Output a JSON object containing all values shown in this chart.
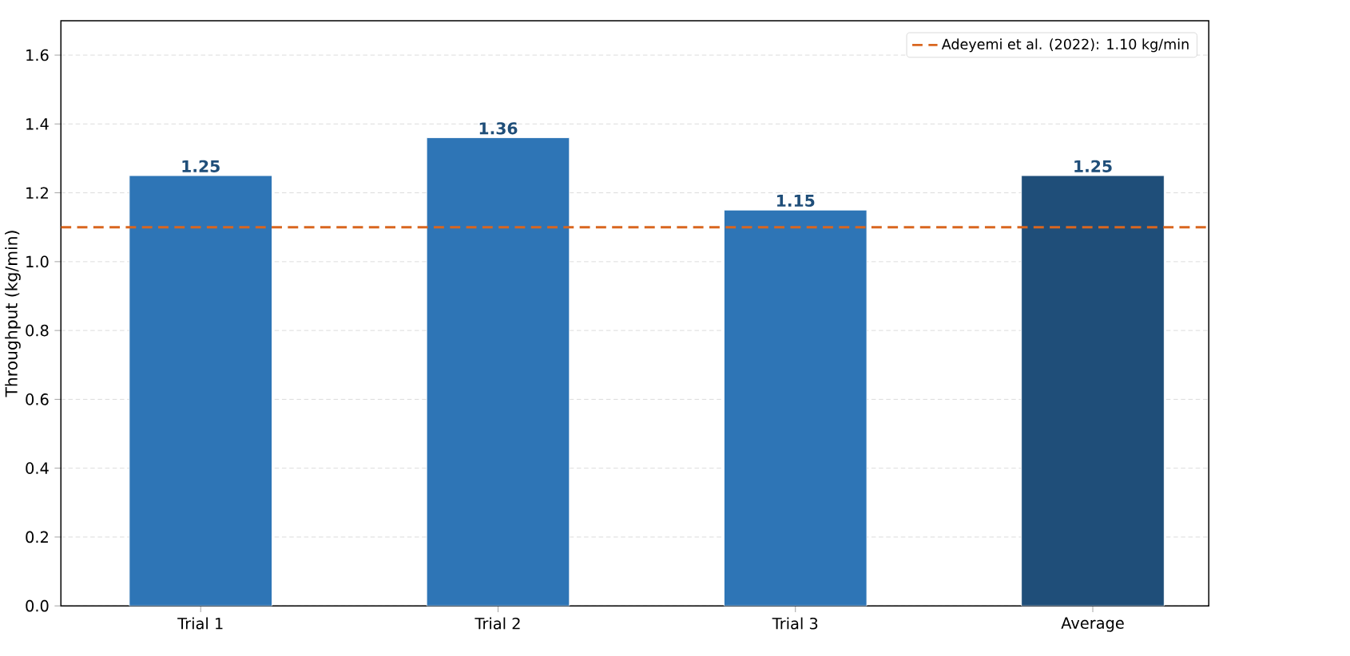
{
  "chart_data": {
    "type": "bar",
    "ylabel": "Throughput (kg/min)",
    "categories": [
      "Trial 1",
      "Trial 2",
      "Trial 3",
      "Average"
    ],
    "values": [
      1.25,
      1.36,
      1.15,
      1.25
    ],
    "colors": [
      "#2e75b6",
      "#2e75b6",
      "#2e75b6",
      "#1f4e79"
    ],
    "data_labels": true,
    "ylim": [
      0,
      1.7
    ],
    "yticks": [
      {
        "value": 0,
        "label": "0.0"
      },
      0.2,
      0.4,
      0.6,
      0.8,
      {
        "value": 1,
        "label": "1.0"
      },
      1.2,
      1.4,
      1.6
    ],
    "ref_lines": [
      {
        "axis": "y",
        "value": 1.1,
        "label": "Adeyemi et al. (2022): 1.10 kg/min",
        "color": "#d9661f",
        "line_style": "dashed"
      }
    ],
    "grid": "y",
    "legend": "top right"
  }
}
